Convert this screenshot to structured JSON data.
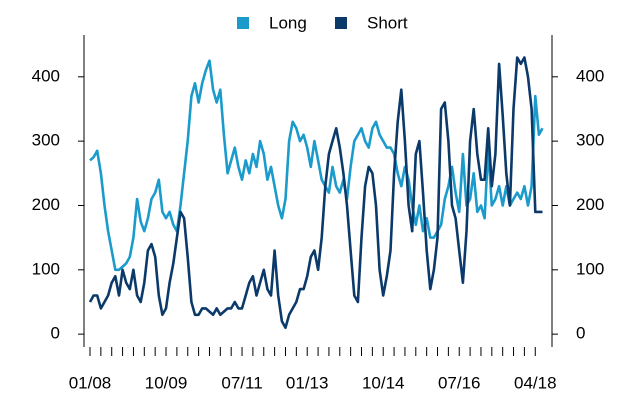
{
  "chart_data": {
    "type": "line",
    "categories": [
      "01/08",
      null,
      null,
      null,
      null,
      null,
      null,
      null,
      null,
      null,
      null,
      null,
      null,
      null,
      null,
      null,
      null,
      null,
      null,
      null,
      null,
      "10/09",
      null,
      null,
      null,
      null,
      null,
      null,
      null,
      null,
      null,
      null,
      null,
      null,
      null,
      null,
      null,
      null,
      null,
      null,
      null,
      null,
      "07/11",
      null,
      null,
      null,
      null,
      null,
      null,
      null,
      null,
      null,
      null,
      null,
      null,
      null,
      null,
      null,
      null,
      null,
      "01/13",
      null,
      null,
      null,
      null,
      null,
      null,
      null,
      null,
      null,
      null,
      null,
      null,
      null,
      null,
      null,
      null,
      null,
      null,
      null,
      null,
      "10/14",
      null,
      null,
      null,
      null,
      null,
      null,
      null,
      null,
      null,
      null,
      null,
      null,
      null,
      null,
      null,
      null,
      null,
      null,
      null,
      null,
      "07/16",
      null,
      null,
      null,
      null,
      null,
      null,
      null,
      null,
      null,
      null,
      null,
      null,
      null,
      null,
      null,
      null,
      null,
      null,
      null,
      null,
      "04/18",
      null,
      null
    ],
    "series": [
      {
        "name": "Long",
        "color": "#1a9bcc",
        "values": [
          270,
          275,
          285,
          250,
          200,
          160,
          130,
          100,
          100,
          105,
          110,
          120,
          150,
          210,
          175,
          160,
          180,
          210,
          220,
          240,
          190,
          180,
          190,
          170,
          160,
          200,
          250,
          300,
          370,
          390,
          360,
          390,
          410,
          425,
          380,
          360,
          380,
          310,
          250,
          270,
          290,
          260,
          240,
          270,
          250,
          280,
          260,
          300,
          280,
          240,
          260,
          230,
          200,
          180,
          210,
          300,
          330,
          320,
          300,
          310,
          290,
          260,
          300,
          270,
          240,
          230,
          220,
          260,
          230,
          220,
          240,
          210,
          260,
          300,
          310,
          320,
          300,
          290,
          320,
          330,
          310,
          300,
          290,
          290,
          280,
          250,
          230,
          260,
          240,
          200,
          170,
          200,
          160,
          180,
          150,
          150,
          160,
          170,
          210,
          230,
          260,
          220,
          190,
          280,
          200,
          210,
          250,
          190,
          200,
          180,
          290,
          200,
          210,
          230,
          200,
          230,
          200,
          210,
          220,
          210,
          230,
          200,
          230,
          370,
          310,
          320
        ]
      },
      {
        "name": "Short",
        "color": "#0b3a6a",
        "values": [
          50,
          60,
          60,
          40,
          50,
          60,
          80,
          90,
          60,
          100,
          80,
          70,
          100,
          60,
          50,
          80,
          130,
          140,
          120,
          60,
          30,
          40,
          80,
          110,
          150,
          190,
          180,
          120,
          50,
          30,
          30,
          40,
          40,
          35,
          30,
          40,
          30,
          35,
          40,
          40,
          50,
          40,
          40,
          60,
          80,
          90,
          60,
          80,
          100,
          70,
          60,
          130,
          60,
          20,
          10,
          30,
          40,
          50,
          70,
          70,
          90,
          120,
          130,
          100,
          150,
          230,
          280,
          300,
          320,
          290,
          250,
          200,
          130,
          60,
          50,
          150,
          230,
          260,
          250,
          200,
          100,
          60,
          90,
          130,
          250,
          330,
          380,
          300,
          200,
          160,
          280,
          300,
          220,
          130,
          70,
          100,
          150,
          350,
          360,
          300,
          200,
          180,
          130,
          80,
          160,
          300,
          350,
          280,
          240,
          240,
          320,
          230,
          280,
          420,
          340,
          250,
          200,
          350,
          430,
          420,
          430,
          400,
          350,
          190,
          190,
          190
        ]
      }
    ],
    "ylim": [
      -20,
      465
    ],
    "yticks": [
      0,
      100,
      200,
      300,
      400
    ],
    "y2lim": [
      -20,
      465
    ],
    "y2ticks": [
      0,
      100,
      200,
      300,
      400
    ],
    "legend": "top"
  }
}
